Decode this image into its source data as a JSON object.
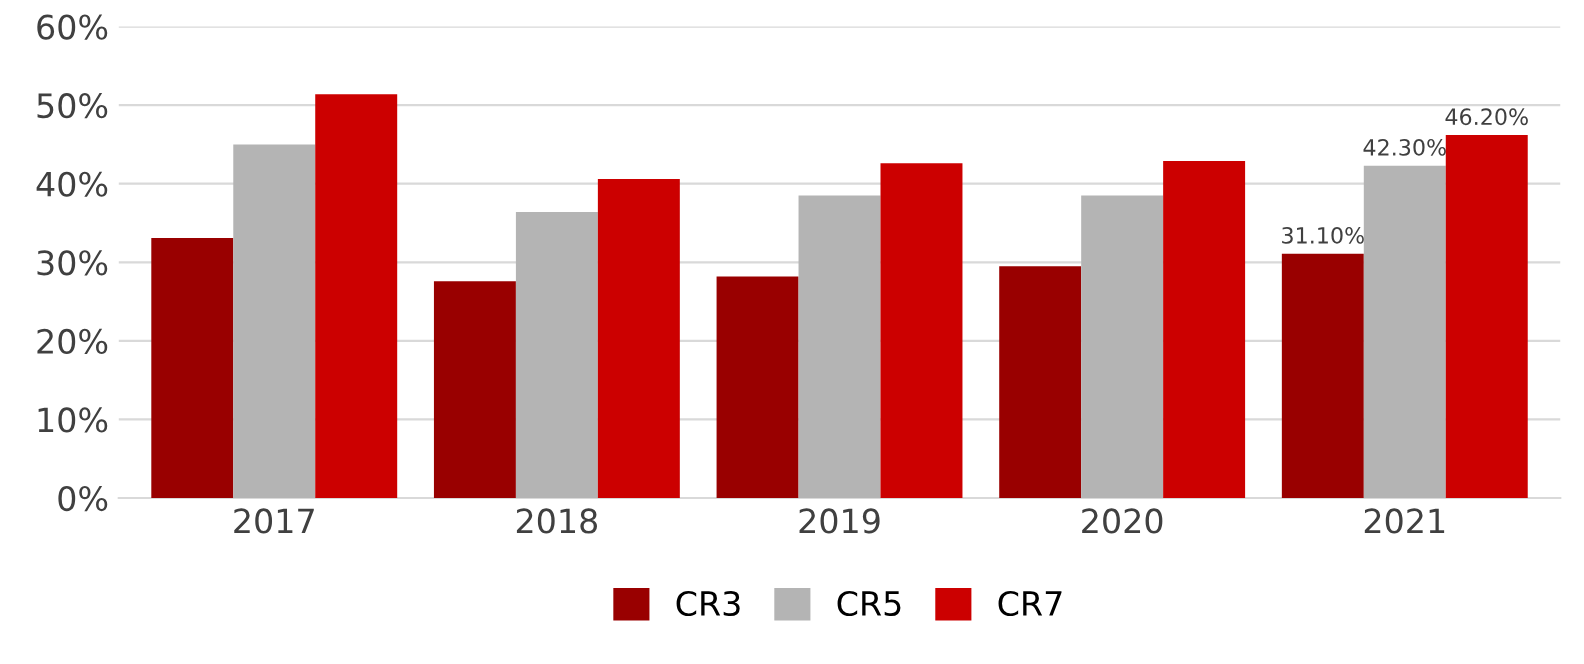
{
  "chart_data": {
    "type": "bar",
    "categories": [
      "2017",
      "2018",
      "2019",
      "2020",
      "2021"
    ],
    "series": [
      {
        "name": "CR3",
        "color": "#990000",
        "values": [
          33.1,
          27.6,
          28.2,
          29.5,
          31.1
        ],
        "value_labels": [
          null,
          null,
          null,
          null,
          "31.10%"
        ]
      },
      {
        "name": "CR5",
        "color": "#b4b4b4",
        "values": [
          45.0,
          36.4,
          38.5,
          38.5,
          42.3
        ],
        "value_labels": [
          null,
          null,
          null,
          null,
          "42.30%"
        ]
      },
      {
        "name": "CR7",
        "color": "#cc0000",
        "values": [
          51.4,
          40.6,
          42.6,
          42.9,
          46.2
        ],
        "value_labels": [
          null,
          null,
          null,
          null,
          "46.20%"
        ]
      }
    ],
    "ylim": [
      0,
      60
    ],
    "yticks": [
      {
        "value": 0,
        "label": "0%"
      },
      {
        "value": 10,
        "label": "10%"
      },
      {
        "value": 20,
        "label": "20%"
      },
      {
        "value": 30,
        "label": "30%"
      },
      {
        "value": 40,
        "label": "40%"
      },
      {
        "value": 50,
        "label": "50%"
      },
      {
        "value": 60,
        "label": "60%"
      }
    ],
    "grid": "y",
    "legend": "bottom"
  }
}
